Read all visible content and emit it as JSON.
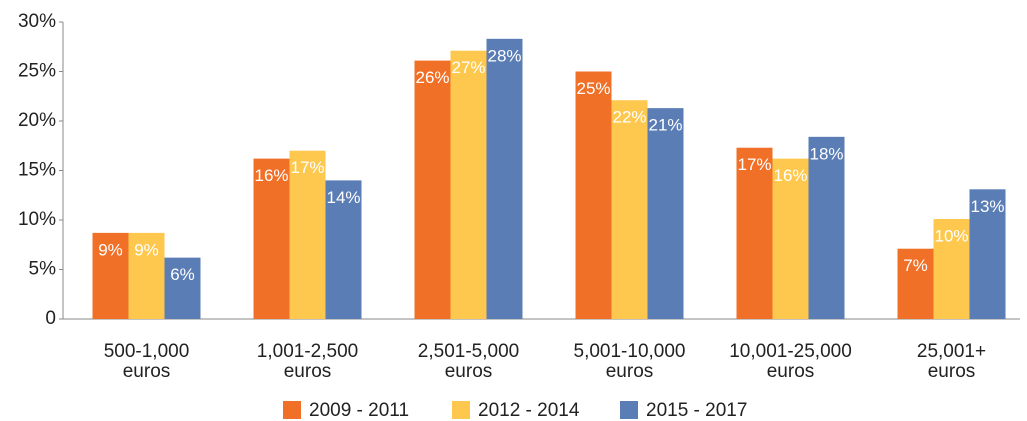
{
  "chart_data": {
    "type": "bar",
    "categories": [
      [
        "500-1,000",
        "euros"
      ],
      [
        "1,001-2,500",
        "euros"
      ],
      [
        "2,501-5,000",
        "euros"
      ],
      [
        "5,001-10,000",
        "euros"
      ],
      [
        "10,001-25,000",
        "euros"
      ],
      [
        "25,001+",
        "euros"
      ]
    ],
    "series": [
      {
        "name": "2009 - 2011",
        "color": "#f07028",
        "values": [
          8.7,
          16.2,
          26.1,
          25.0,
          17.3,
          7.1
        ],
        "value_labels": [
          "9%",
          "16%",
          "26%",
          "25%",
          "17%",
          "7%"
        ]
      },
      {
        "name": "2012 - 2014",
        "color": "#fec84e",
        "values": [
          8.7,
          17.0,
          27.1,
          22.1,
          16.2,
          10.1
        ],
        "value_labels": [
          "9%",
          "17%",
          "27%",
          "22%",
          "16%",
          "10%"
        ]
      },
      {
        "name": "2015 - 2017",
        "color": "#5a7db5",
        "values": [
          6.2,
          14.0,
          28.3,
          21.3,
          18.4,
          13.1
        ],
        "value_labels": [
          "6%",
          "14%",
          "28%",
          "21%",
          "18%",
          "13%"
        ]
      }
    ],
    "ylim": [
      0,
      30
    ],
    "yticks": [
      0,
      {
        "value": 5,
        "label": "5%"
      },
      {
        "value": 10,
        "label": "10%"
      },
      {
        "value": 15,
        "label": "15%"
      },
      {
        "value": 20,
        "label": "20%"
      },
      {
        "value": 25,
        "label": "25%"
      },
      {
        "value": 30,
        "label": "30%"
      }
    ],
    "grid": false,
    "legend": "bottom"
  }
}
